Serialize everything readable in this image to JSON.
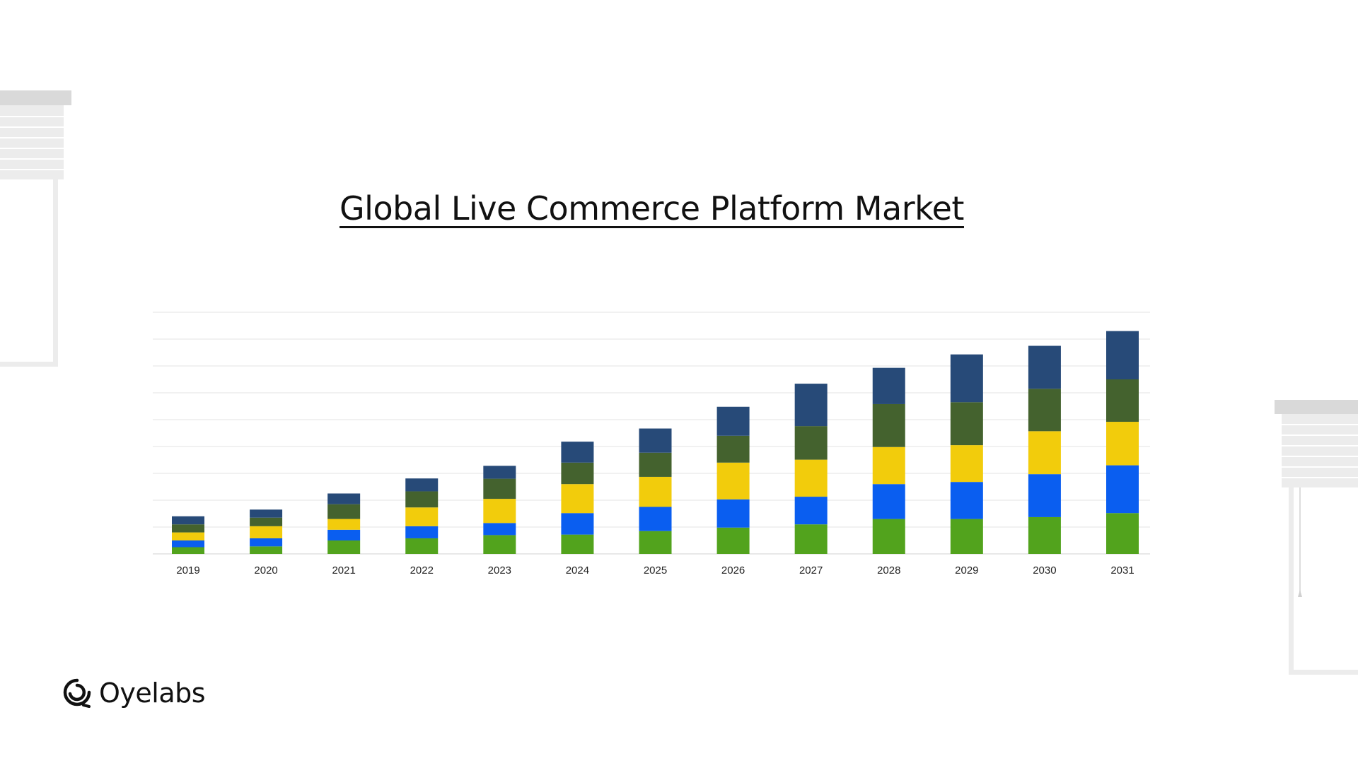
{
  "brand": {
    "name": "Oyelabs",
    "logo_icon": "oyelabs-swirl-logo-icon"
  },
  "decor": {
    "left": "window-blind-icon",
    "right": "window-blind-icon"
  },
  "chart_data": {
    "type": "bar",
    "stacked": true,
    "title": "Global Live Commerce Platform Market",
    "xlabel": "",
    "ylabel": "",
    "ylim": [
      0,
      900
    ],
    "y_grid_step": 100,
    "grid": true,
    "legend": "none",
    "categories": [
      "2019",
      "2020",
      "2021",
      "2022",
      "2023",
      "2024",
      "2025",
      "2026",
      "2027",
      "2028",
      "2029",
      "2030",
      "2031"
    ],
    "series": [
      {
        "color": "#52a31d",
        "values": [
          25,
          28,
          50,
          58,
          70,
          72,
          85,
          98,
          110,
          130,
          130,
          137,
          152
        ]
      },
      {
        "color": "#0a5ef0",
        "values": [
          25,
          30,
          40,
          45,
          45,
          80,
          90,
          105,
          103,
          130,
          138,
          160,
          178
        ]
      },
      {
        "color": "#f2cc0c",
        "values": [
          30,
          45,
          40,
          70,
          90,
          108,
          112,
          137,
          138,
          138,
          137,
          160,
          162
        ]
      },
      {
        "color": "#44622e",
        "values": [
          30,
          32,
          55,
          60,
          75,
          80,
          90,
          100,
          125,
          160,
          160,
          158,
          158
        ]
      },
      {
        "color": "#274a78",
        "values": [
          30,
          30,
          40,
          48,
          48,
          78,
          90,
          108,
          158,
          135,
          178,
          160,
          180
        ]
      }
    ]
  }
}
